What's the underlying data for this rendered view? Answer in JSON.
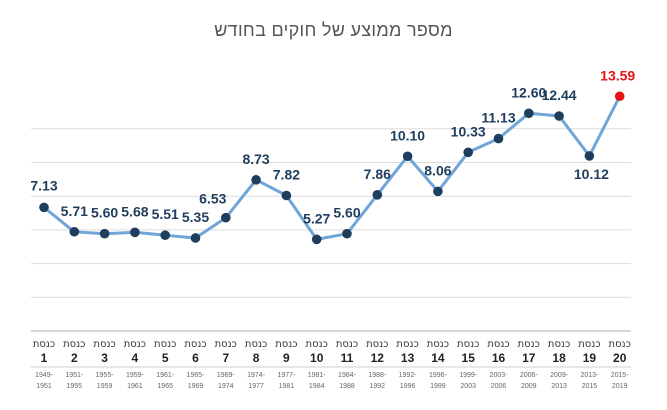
{
  "chart_data": {
    "type": "line",
    "title": "מספר ממוצע של חוקים בחודש",
    "xlabel": "",
    "ylabel": "",
    "ylim": [
      0,
      16
    ],
    "grid": true,
    "legend": "none",
    "x": [
      {
        "label": "כנסת",
        "number": "1",
        "years": [
          "1949-",
          "1951"
        ]
      },
      {
        "label": "כנסת",
        "number": "2",
        "years": [
          "1951-",
          "1955"
        ]
      },
      {
        "label": "כנסת",
        "number": "3",
        "years": [
          "1955-",
          "1959"
        ]
      },
      {
        "label": "כנסת",
        "number": "4",
        "years": [
          "1959-",
          "1961"
        ]
      },
      {
        "label": "כנסת",
        "number": "5",
        "years": [
          "1961-",
          "1965"
        ]
      },
      {
        "label": "כנסת",
        "number": "6",
        "years": [
          "1965-",
          "1969"
        ]
      },
      {
        "label": "כנסת",
        "number": "7",
        "years": [
          "1969-",
          "1974"
        ]
      },
      {
        "label": "כנסת",
        "number": "8",
        "years": [
          "1974-",
          "1977"
        ]
      },
      {
        "label": "כנסת",
        "number": "9",
        "years": [
          "1977-",
          "1981"
        ]
      },
      {
        "label": "כנסת",
        "number": "10",
        "years": [
          "1981-",
          "1984"
        ]
      },
      {
        "label": "כנסת",
        "number": "11",
        "years": [
          "1984-",
          "1988"
        ]
      },
      {
        "label": "כנסת",
        "number": "12",
        "years": [
          "1988-",
          "1992"
        ]
      },
      {
        "label": "כנסת",
        "number": "13",
        "years": [
          "1992-",
          "1996"
        ]
      },
      {
        "label": "כנסת",
        "number": "14",
        "years": [
          "1996-",
          "1999"
        ]
      },
      {
        "label": "כנסת",
        "number": "15",
        "years": [
          "1999-",
          "2003"
        ]
      },
      {
        "label": "כנסת",
        "number": "16",
        "years": [
          "2003-",
          "2006"
        ]
      },
      {
        "label": "כנסת",
        "number": "17",
        "years": [
          "2006-",
          "2009"
        ]
      },
      {
        "label": "כנסת",
        "number": "18",
        "years": [
          "2009-",
          "2013"
        ]
      },
      {
        "label": "כנסת",
        "number": "19",
        "years": [
          "2013-",
          "2015"
        ]
      },
      {
        "label": "כנסת",
        "number": "20",
        "years": [
          "2015-",
          "2019"
        ]
      }
    ],
    "series": [
      {
        "values": [
          7.13,
          5.71,
          5.6,
          5.68,
          5.51,
          5.35,
          6.53,
          8.73,
          7.82,
          5.27,
          5.6,
          7.86,
          10.1,
          8.06,
          10.33,
          11.13,
          12.6,
          12.44,
          10.12,
          13.59
        ],
        "labels": [
          "7.13",
          "5.71",
          "5.60",
          "5.68",
          "5.51",
          "5.35",
          "6.53",
          "8.73",
          "7.82",
          "5.27",
          "5.60",
          "7.86",
          "10.10",
          "8.06",
          "10.33",
          "11.13",
          "12.60",
          "12.44",
          "10.12",
          "13.59"
        ]
      }
    ],
    "colors": {
      "line": "#6fa5d8",
      "point": "#1f3d5c",
      "label": "#1f3d5c",
      "highlight": "#e81414",
      "grid": "#dcdcdc",
      "axis": "#b0b0b0"
    }
  }
}
